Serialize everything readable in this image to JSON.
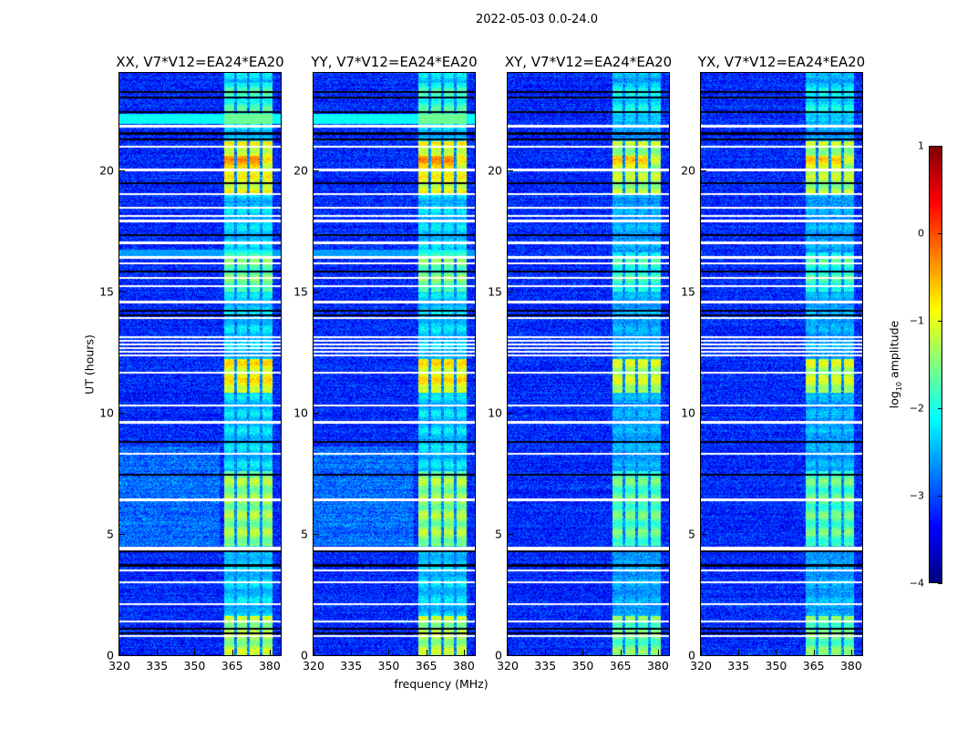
{
  "chart_data": {
    "type": "heatmap",
    "suptitle": "2022-05-03 0.0-24.0",
    "xlabel": "frequency (MHz)",
    "ylabel": "UT (hours)",
    "xlim": [
      320,
      384.4
    ],
    "ylim": [
      0,
      24
    ],
    "x_ticks": [
      320,
      335,
      350,
      365,
      380
    ],
    "y_ticks": [
      0,
      5,
      10,
      15,
      20
    ],
    "panels": [
      {
        "title": "XX, V7*V12=EA24*EA20",
        "cyan_band": true
      },
      {
        "title": "YY, V7*V12=EA24*EA20",
        "cyan_band": true
      },
      {
        "title": "XY, V7*V12=EA24*EA20",
        "cyan_band": false
      },
      {
        "title": "YX, V7*V12=EA24*EA20",
        "cyan_band": false
      }
    ],
    "colorbar": {
      "label_main": "log",
      "label_sub": "10",
      "label_rest": " amplitude",
      "range": [
        -4,
        1
      ],
      "ticks": [
        1,
        0,
        -1,
        -2,
        -3,
        -4
      ],
      "tick_labels": [
        "1",
        "0",
        "−1",
        "−2",
        "−3",
        "−4"
      ],
      "colormap": "jet"
    },
    "background_log_amplitude": -3.2,
    "flagged_hours": [
      21.8,
      20.96,
      20.0,
      19.0,
      18.45,
      18.1,
      17.9,
      17.0,
      16.4,
      16.15,
      15.55,
      15.2,
      14.55,
      13.9,
      12.35,
      12.5,
      12.65,
      12.8,
      12.95,
      13.1,
      11.65,
      10.3,
      9.6,
      8.3,
      6.4,
      4.4,
      3.5,
      3.0,
      2.1,
      1.4,
      0.8
    ],
    "dropout_hours": [
      23.2,
      23.0,
      22.4,
      21.5,
      21.25,
      19.45,
      17.3,
      15.8,
      14.2,
      14.0,
      8.8,
      7.45,
      4.3,
      3.7,
      1.1,
      0.9
    ],
    "rfi_bands_mhz": [
      [
        362,
        366
      ],
      [
        367,
        371
      ],
      [
        372,
        376
      ],
      [
        377,
        381
      ]
    ],
    "rfi_active_hours": [
      {
        "from": 22.0,
        "to": 23.6,
        "level": -1.9
      },
      {
        "from": 19.0,
        "to": 21.2,
        "level": -1.0
      },
      {
        "from": 15.0,
        "to": 16.6,
        "level": -1.6
      },
      {
        "from": 10.8,
        "to": 12.2,
        "level": -0.9
      },
      {
        "from": 4.5,
        "to": 7.6,
        "level": -1.4
      },
      {
        "from": 0.0,
        "to": 1.6,
        "level": -1.3
      }
    ]
  }
}
